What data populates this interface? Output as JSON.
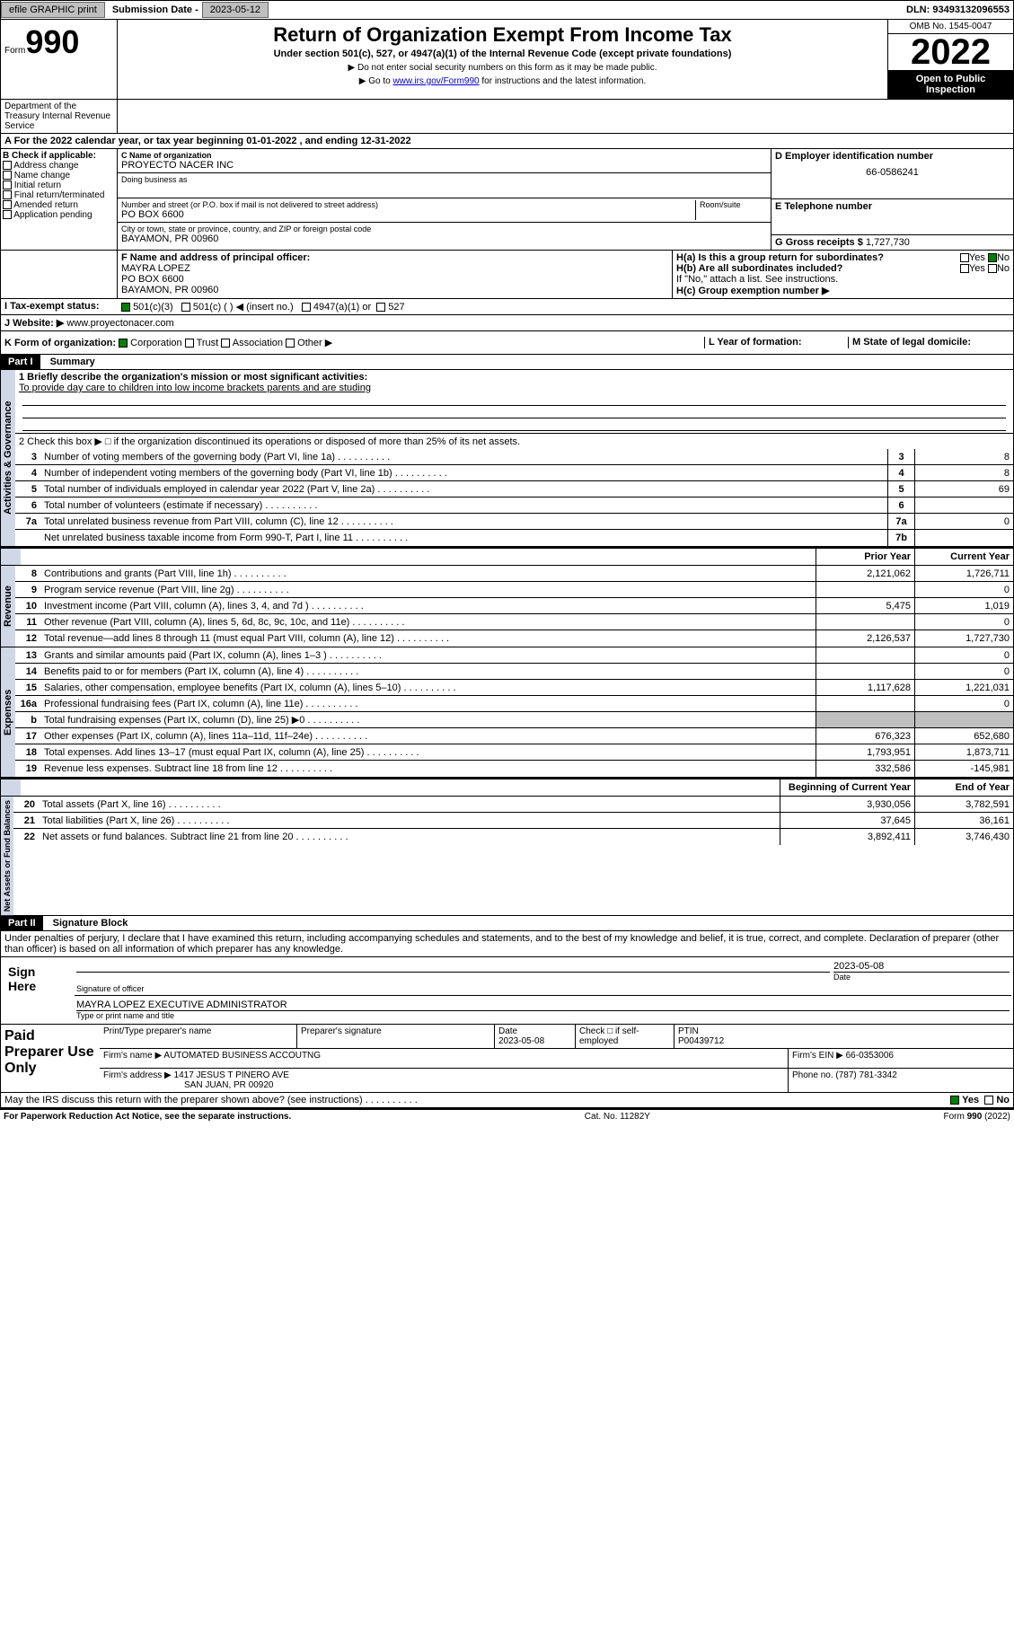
{
  "topbar": {
    "efile": "efile GRAPHIC print",
    "submission_label": "Submission Date - ",
    "submission_date": "2023-05-12",
    "dln_label": "DLN: ",
    "dln": "93493132096553"
  },
  "header": {
    "form_prefix": "Form",
    "form_no": "990",
    "title": "Return of Organization Exempt From Income Tax",
    "subtitle": "Under section 501(c), 527, or 4947(a)(1) of the Internal Revenue Code (except private foundations)",
    "instr1": "▶ Do not enter social security numbers on this form as it may be made public.",
    "instr2_prefix": "▶ Go to ",
    "instr2_link": "www.irs.gov/Form990",
    "instr2_suffix": " for instructions and the latest information.",
    "omb": "OMB No. 1545-0047",
    "year": "2022",
    "open": "Open to Public Inspection",
    "dept": "Department of the Treasury Internal Revenue Service"
  },
  "section_a": {
    "tax_year": "A For the 2022 calendar year, or tax year beginning 01-01-2022    , and ending 12-31-2022",
    "b_label": "B Check if applicable:",
    "b_opts": [
      "Address change",
      "Name change",
      "Initial return",
      "Final return/terminated",
      "Amended return",
      "Application pending"
    ],
    "c_label": "C Name of organization",
    "org_name": "PROYECTO NACER INC",
    "dba_label": "Doing business as",
    "addr_label": "Number and street (or P.O. box if mail is not delivered to street address)",
    "room_label": "Room/suite",
    "addr": "PO BOX 6600",
    "city_label": "City or town, state or province, country, and ZIP or foreign postal code",
    "city": "BAYAMON, PR  00960",
    "d_label": "D Employer identification number",
    "ein": "66-0586241",
    "e_label": "E Telephone number",
    "g_label": "G Gross receipts $",
    "g_val": "1,727,730",
    "f_label": "F  Name and address of principal officer:",
    "officer_name": "MAYRA LOPEZ",
    "officer_addr1": "PO BOX 6600",
    "officer_addr2": "BAYAMON, PR  00960",
    "ha": "H(a)  Is this a group return for subordinates?",
    "hb": "H(b)  Are all subordinates included?",
    "hb_note": "If \"No,\" attach a list. See instructions.",
    "hc": "H(c)  Group exemption number ▶",
    "yes": "Yes",
    "no": "No",
    "i_label": "I    Tax-exempt status:",
    "i_501c3": "501(c)(3)",
    "i_501c": "501(c) (  ) ◀ (insert no.)",
    "i_4947": "4947(a)(1) or",
    "i_527": "527",
    "j_label": "J   Website: ▶",
    "website": "www.proyectonacer.com",
    "k_label": "K Form of organization:",
    "k_corp": "Corporation",
    "k_trust": "Trust",
    "k_assoc": "Association",
    "k_other": "Other ▶",
    "l_label": "L Year of formation:",
    "m_label": "M State of legal domicile:"
  },
  "part1": {
    "header": "Part I",
    "title": "Summary",
    "q1_label": "1  Briefly describe the organization's mission or most significant activities:",
    "q1_text": "To provide day care to children into low income brackets parents and are studing",
    "q2": "2   Check this box ▶ □  if the organization discontinued its operations or disposed of more than 25% of its net assets.",
    "rows_gov": [
      {
        "n": "3",
        "d": "Number of voting members of the governing body (Part VI, line 1a)",
        "box": "3",
        "v": "8"
      },
      {
        "n": "4",
        "d": "Number of independent voting members of the governing body (Part VI, line 1b)",
        "box": "4",
        "v": "8"
      },
      {
        "n": "5",
        "d": "Total number of individuals employed in calendar year 2022 (Part V, line 2a)",
        "box": "5",
        "v": "69"
      },
      {
        "n": "6",
        "d": "Total number of volunteers (estimate if necessary)",
        "box": "6",
        "v": ""
      },
      {
        "n": "7a",
        "d": "Total unrelated business revenue from Part VIII, column (C), line 12",
        "box": "7a",
        "v": "0"
      },
      {
        "n": "",
        "d": "Net unrelated business taxable income from Form 990-T, Part I, line 11",
        "box": "7b",
        "v": ""
      }
    ],
    "col_prior": "Prior Year",
    "col_current": "Current Year",
    "rows_rev": [
      {
        "n": "8",
        "d": "Contributions and grants (Part VIII, line 1h)",
        "p": "2,121,062",
        "c": "1,726,711"
      },
      {
        "n": "9",
        "d": "Program service revenue (Part VIII, line 2g)",
        "p": "",
        "c": "0"
      },
      {
        "n": "10",
        "d": "Investment income (Part VIII, column (A), lines 3, 4, and 7d )",
        "p": "5,475",
        "c": "1,019"
      },
      {
        "n": "11",
        "d": "Other revenue (Part VIII, column (A), lines 5, 6d, 8c, 9c, 10c, and 11e)",
        "p": "",
        "c": "0"
      },
      {
        "n": "12",
        "d": "Total revenue—add lines 8 through 11 (must equal Part VIII, column (A), line 12)",
        "p": "2,126,537",
        "c": "1,727,730"
      }
    ],
    "rows_exp": [
      {
        "n": "13",
        "d": "Grants and similar amounts paid (Part IX, column (A), lines 1–3 )",
        "p": "",
        "c": "0"
      },
      {
        "n": "14",
        "d": "Benefits paid to or for members (Part IX, column (A), line 4)",
        "p": "",
        "c": "0"
      },
      {
        "n": "15",
        "d": "Salaries, other compensation, employee benefits (Part IX, column (A), lines 5–10)",
        "p": "1,117,628",
        "c": "1,221,031"
      },
      {
        "n": "16a",
        "d": "Professional fundraising fees (Part IX, column (A), line 11e)",
        "p": "",
        "c": "0"
      },
      {
        "n": "b",
        "d": "Total fundraising expenses (Part IX, column (D), line 25) ▶0",
        "p": "shaded",
        "c": "shaded"
      },
      {
        "n": "17",
        "d": "Other expenses (Part IX, column (A), lines 11a–11d, 11f–24e)",
        "p": "676,323",
        "c": "652,680"
      },
      {
        "n": "18",
        "d": "Total expenses. Add lines 13–17 (must equal Part IX, column (A), line 25)",
        "p": "1,793,951",
        "c": "1,873,711"
      },
      {
        "n": "19",
        "d": "Revenue less expenses. Subtract line 18 from line 12",
        "p": "332,586",
        "c": "-145,981"
      }
    ],
    "col_begin": "Beginning of Current Year",
    "col_end": "End of Year",
    "rows_net": [
      {
        "n": "20",
        "d": "Total assets (Part X, line 16)",
        "p": "3,930,056",
        "c": "3,782,591"
      },
      {
        "n": "21",
        "d": "Total liabilities (Part X, line 26)",
        "p": "37,645",
        "c": "36,161"
      },
      {
        "n": "22",
        "d": "Net assets or fund balances. Subtract line 21 from line 20",
        "p": "3,892,411",
        "c": "3,746,430"
      }
    ],
    "vert_gov": "Activities & Governance",
    "vert_rev": "Revenue",
    "vert_exp": "Expenses",
    "vert_net": "Net Assets or Fund Balances"
  },
  "part2": {
    "header": "Part II",
    "title": "Signature Block",
    "decl": "Under penalties of perjury, I declare that I have examined this return, including accompanying schedules and statements, and to the best of my knowledge and belief, it is true, correct, and complete. Declaration of preparer (other than officer) is based on all information of which preparer has any knowledge.",
    "sign_here": "Sign Here",
    "sig_officer": "Signature of officer",
    "sig_date": "2023-05-08",
    "date_label": "Date",
    "officer_title": "MAYRA LOPEZ  EXECUTIVE ADMINISTRATOR",
    "type_label": "Type or print name and title",
    "paid_label": "Paid Preparer Use Only",
    "prep_name_label": "Print/Type preparer's name",
    "prep_sig_label": "Preparer's signature",
    "prep_date": "2023-05-08",
    "check_label": "Check □ if self-employed",
    "ptin_label": "PTIN",
    "ptin": "P00439712",
    "firm_name_label": "Firm's name     ▶",
    "firm_name": "AUTOMATED BUSINESS ACCOUTNG",
    "firm_ein_label": "Firm's EIN ▶",
    "firm_ein": "66-0353006",
    "firm_addr_label": "Firm's address ▶",
    "firm_addr1": "1417 JESUS T PINERO AVE",
    "firm_addr2": "SAN JUAN, PR  00920",
    "phone_label": "Phone no.",
    "phone": "(787) 781-3342",
    "discuss": "May the IRS discuss this return with the preparer shown above? (see instructions)",
    "paperwork": "For Paperwork Reduction Act Notice, see the separate instructions.",
    "cat": "Cat. No. 11282Y",
    "form_foot": "Form 990 (2022)"
  }
}
